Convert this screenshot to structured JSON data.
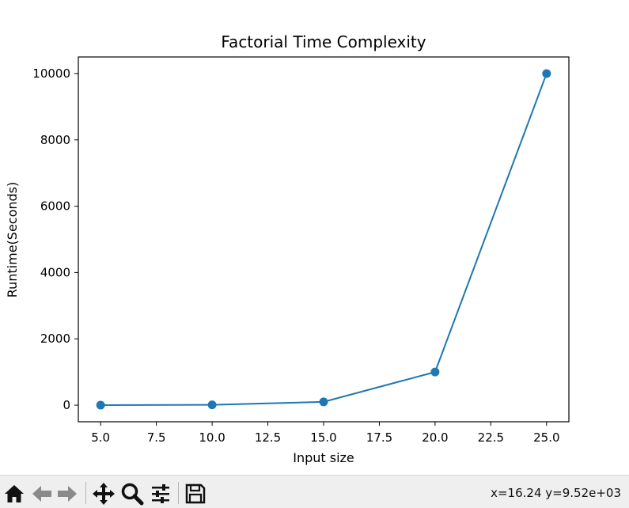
{
  "chart_data": {
    "type": "line",
    "title": "Factorial Time Complexity",
    "xlabel": "Input size",
    "ylabel": "Runtime(Seconds)",
    "x": [
      5,
      10,
      15,
      20,
      25
    ],
    "series": [
      {
        "values": [
          0,
          10,
          100,
          1000,
          10000
        ],
        "color": "#1f77b4",
        "marker": "circle"
      }
    ],
    "xlim": [
      4.0,
      26.0
    ],
    "ylim": [
      -500,
      10500
    ],
    "xticks": [
      5.0,
      7.5,
      10.0,
      12.5,
      15.0,
      17.5,
      20.0,
      22.5,
      25.0
    ],
    "xtick_labels": [
      "5.0",
      "7.5",
      "10.0",
      "12.5",
      "15.0",
      "17.5",
      "20.0",
      "22.5",
      "25.0"
    ],
    "yticks": [
      0,
      2000,
      4000,
      6000,
      8000,
      10000
    ],
    "ytick_labels": [
      "0",
      "2000",
      "4000",
      "6000",
      "8000",
      "10000"
    ],
    "grid": true,
    "legend": "none"
  },
  "toolbar": {
    "buttons": [
      {
        "name": "home-icon",
        "tooltip": "Reset original view"
      },
      {
        "name": "back-arrow-icon",
        "tooltip": "Back to previous view"
      },
      {
        "name": "forward-arrow-icon",
        "tooltip": "Forward to next view"
      },
      {
        "name": "pan-icon",
        "tooltip": "Pan axes"
      },
      {
        "name": "zoom-icon",
        "tooltip": "Zoom to rectangle"
      },
      {
        "name": "configure-subplots-icon",
        "tooltip": "Configure subplots"
      },
      {
        "name": "save-icon",
        "tooltip": "Save the figure"
      }
    ],
    "coord_readout": "x=16.24 y=9.52e+03"
  }
}
